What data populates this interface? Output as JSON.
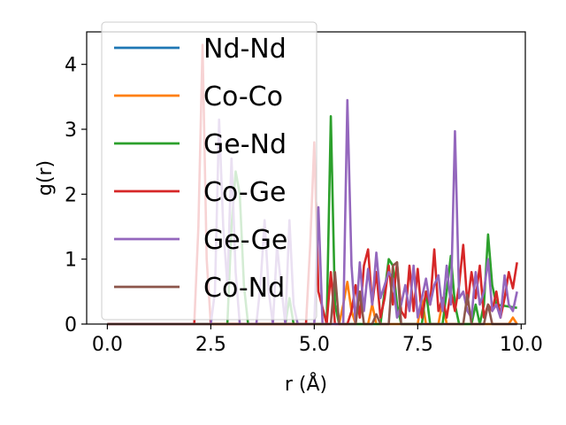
{
  "chart_data": {
    "type": "line",
    "xlabel": "r (Å)",
    "ylabel": "g(r)",
    "xlim": [
      -0.5,
      10.1
    ],
    "ylim": [
      0,
      4.5
    ],
    "xticks": [
      "0.0",
      "2.5",
      "5.0",
      "7.5",
      "10.0"
    ],
    "xtick_values": [
      0,
      2.5,
      5,
      7.5,
      10
    ],
    "yticks": [
      "0",
      "1",
      "2",
      "3",
      "4"
    ],
    "ytick_values": [
      0,
      1,
      2,
      3,
      4
    ],
    "grid": false,
    "legend_position": "top-left",
    "series": [
      {
        "name": "Nd-Nd",
        "color": "#1f77b4",
        "x": [
          0,
          9.9
        ],
        "y": [
          0,
          0
        ]
      },
      {
        "name": "Co-Co",
        "color": "#ff7f0e",
        "x": [
          0,
          5.6,
          5.7,
          5.8,
          5.9,
          6.0,
          6.3,
          6.4,
          6.5,
          7.5,
          7.6,
          7.7,
          8.0,
          8.1,
          8.2,
          9.7,
          9.8,
          9.9
        ],
        "y": [
          0,
          0,
          0.3,
          0.65,
          0.2,
          0,
          0,
          0.3,
          0,
          0,
          0.4,
          0,
          0,
          0.35,
          0,
          0,
          0.1,
          0
        ]
      },
      {
        "name": "Ge-Nd",
        "color": "#2ca02c",
        "x": [
          0,
          2.9,
          3.0,
          3.1,
          3.2,
          3.3,
          3.4,
          4.3,
          4.4,
          4.5,
          5.3,
          5.4,
          5.5,
          5.6,
          6.6,
          6.7,
          6.8,
          6.9,
          7.0,
          7.1,
          7.6,
          7.7,
          7.8,
          8.1,
          8.2,
          8.3,
          8.4,
          8.5,
          8.8,
          8.9,
          9.0,
          9.1,
          9.2,
          9.3,
          9.4,
          9.9
        ],
        "y": [
          0,
          0,
          1.5,
          2.35,
          2.0,
          0.6,
          0,
          0,
          0.4,
          0,
          0,
          3.2,
          0.3,
          0,
          0,
          0.5,
          1.0,
          0.9,
          0.3,
          0,
          0,
          0.5,
          0,
          0,
          0.5,
          1.05,
          0.3,
          0,
          0,
          0.3,
          0,
          0.3,
          1.38,
          0.6,
          0.3,
          0.25
        ]
      },
      {
        "name": "Co-Ge",
        "color": "#d62728",
        "x": [
          0,
          2.1,
          2.2,
          2.3,
          2.4,
          2.5,
          4.8,
          4.9,
          5.0,
          5.1,
          5.3,
          5.4,
          5.5,
          5.8,
          5.9,
          6.0,
          6.1,
          6.2,
          6.3,
          6.4,
          6.5,
          6.6,
          6.7,
          6.8,
          6.9,
          7.0,
          7.1,
          7.2,
          7.3,
          7.4,
          7.5,
          7.6,
          7.7,
          7.8,
          7.9,
          8.0,
          8.1,
          8.2,
          8.3,
          8.4,
          8.5,
          8.6,
          8.7,
          8.8,
          8.9,
          9.0,
          9.1,
          9.2,
          9.3,
          9.4,
          9.5,
          9.6,
          9.7,
          9.8,
          9.9
        ],
        "y": [
          0,
          0,
          1.5,
          4.3,
          1.0,
          0,
          0,
          1.2,
          2.8,
          0.5,
          0,
          0.8,
          0,
          0,
          0.2,
          0.6,
          0.1,
          0.9,
          1.15,
          0.3,
          0.8,
          0.1,
          0.4,
          0.9,
          0.3,
          0.95,
          0.2,
          0.1,
          0.9,
          0.2,
          0.85,
          0.1,
          0.5,
          0.3,
          1.15,
          0.2,
          0.4,
          0.1,
          0.5,
          0.2,
          0.6,
          1.22,
          0.3,
          0.8,
          0.4,
          0.9,
          0.1,
          0.3,
          0.2,
          0.5,
          0.1,
          0.4,
          0.8,
          0.55,
          0.95
        ]
      },
      {
        "name": "Ge-Ge",
        "color": "#9467bd",
        "x": [
          0,
          2.5,
          2.6,
          2.7,
          2.8,
          2.9,
          3.0,
          3.1,
          3.2,
          3.6,
          3.7,
          3.8,
          3.9,
          4.0,
          4.1,
          4.3,
          4.4,
          4.5,
          4.6,
          5.0,
          5.1,
          5.2,
          5.7,
          5.8,
          5.9,
          6.0,
          6.1,
          6.2,
          6.3,
          6.4,
          6.5,
          6.6,
          6.7,
          6.8,
          6.9,
          7.0,
          7.1,
          7.2,
          7.3,
          7.4,
          7.5,
          7.6,
          7.7,
          7.8,
          7.9,
          8.0,
          8.1,
          8.2,
          8.3,
          8.4,
          8.5,
          8.6,
          8.7,
          8.8,
          8.9,
          9.0,
          9.1,
          9.2,
          9.3,
          9.4,
          9.5,
          9.6,
          9.7,
          9.8,
          9.9
        ],
        "y": [
          0,
          0,
          0.5,
          3.15,
          1.5,
          0.6,
          2.55,
          0.8,
          0,
          0,
          0.6,
          1.6,
          0.5,
          0,
          1.2,
          0,
          1.6,
          0.3,
          0,
          0,
          1.8,
          0,
          0,
          3.45,
          0.9,
          0,
          0.95,
          0.2,
          0.85,
          0.3,
          1.1,
          0.4,
          0.6,
          0.8,
          0.7,
          0.1,
          0.3,
          0.6,
          0.2,
          0.9,
          0.1,
          0.4,
          0.7,
          0.3,
          0.6,
          0.75,
          0.2,
          0.9,
          0.3,
          2.97,
          0.4,
          0.5,
          0.2,
          0.1,
          0.8,
          0.3,
          0.5,
          1.0,
          0.2,
          0.3,
          0.1,
          0.75,
          0.3,
          0.2,
          0.5
        ]
      },
      {
        "name": "Co-Nd",
        "color": "#8c564b",
        "x": [
          0,
          5.4,
          5.5,
          5.6,
          6.0,
          6.1,
          6.2,
          6.4,
          6.5,
          6.6,
          6.8,
          6.9,
          7.0,
          7.1,
          8.6,
          8.7,
          8.8,
          9.1,
          9.2,
          9.3,
          9.9
        ],
        "y": [
          0,
          0,
          0.8,
          0,
          0,
          0.5,
          0,
          0,
          0.15,
          0,
          0,
          0.9,
          0.95,
          0,
          0,
          0.45,
          0,
          0,
          0.3,
          0,
          0
        ]
      }
    ]
  }
}
